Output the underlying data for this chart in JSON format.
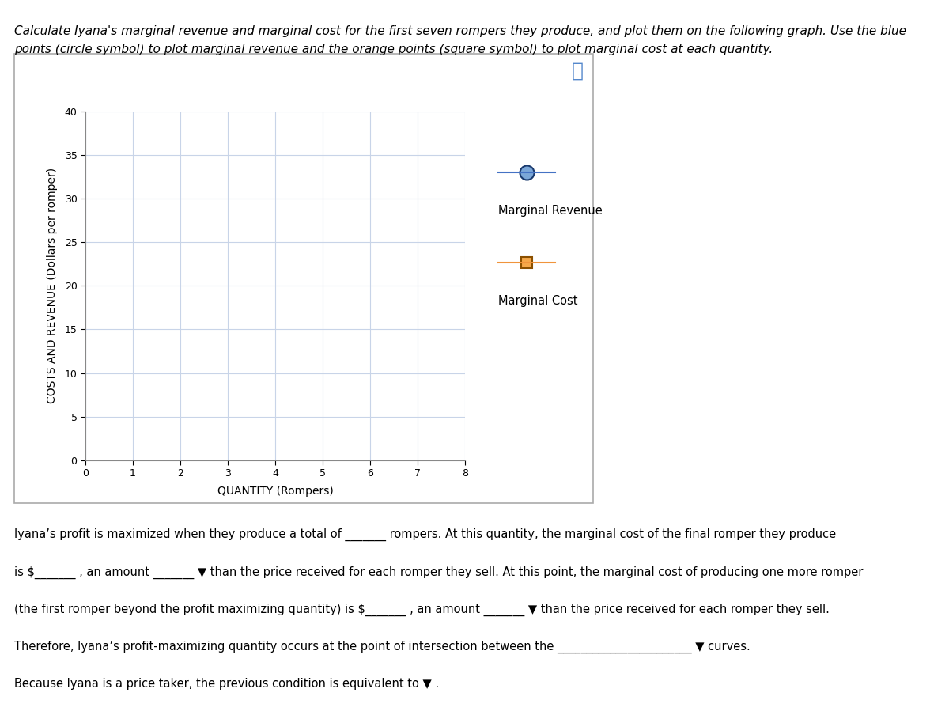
{
  "title_line1": "Calculate Iyana's marginal revenue and marginal cost for the first seven rompers they produce, and plot them on the following graph. Use the blue",
  "title_line2": "points (circle symbol) to plot marginal revenue and the orange points (square symbol) to plot marginal cost at each quantity.",
  "ylabel": "COSTS AND REVENUE (Dollars per romper)",
  "xlabel": "QUANTITY (Rompers)",
  "xlim": [
    0,
    8
  ],
  "ylim": [
    0,
    40
  ],
  "xticks": [
    0,
    1,
    2,
    3,
    4,
    5,
    6,
    7,
    8
  ],
  "yticks": [
    0,
    5,
    10,
    15,
    20,
    25,
    30,
    35,
    40
  ],
  "grid_color": "#c8d4e8",
  "bg_color": "#ffffff",
  "mr_color": "#4472c4",
  "mr_face_color": "#7ba7d8",
  "mr_edge_color": "#1a3a6e",
  "mc_color": "#f0943c",
  "mc_face_color": "#f5a84a",
  "mc_edge_color": "#8b5000",
  "mr_legend_label": "Marginal Revenue",
  "mc_legend_label": "Marginal Cost",
  "box_border_color": "#aaaaaa",
  "axis_label_fontsize": 10,
  "tick_fontsize": 9,
  "legend_fontsize": 10.5,
  "title_fontsize": 11,
  "bottom_fontsize": 10.5,
  "qmark_color": "#5588cc",
  "bottom_lines": [
    "Iyana’s profit is maximized when they produce a total of _______ rompers. At this quantity, the marginal cost of the final romper they produce",
    "is $_______ , an amount _______ ▼ than the price received for each romper they sell. At this point, the marginal cost of producing one more romper",
    "(the first romper beyond the profit maximizing quantity) is $_______ , an amount _______ ▼ than the price received for each romper they sell.",
    "Therefore, Iyana’s profit-maximizing quantity occurs at the point of intersection between the _______________________ ▼ curves.",
    "Because Iyana is a price taker, the previous condition is equivalent to ▼ ."
  ]
}
